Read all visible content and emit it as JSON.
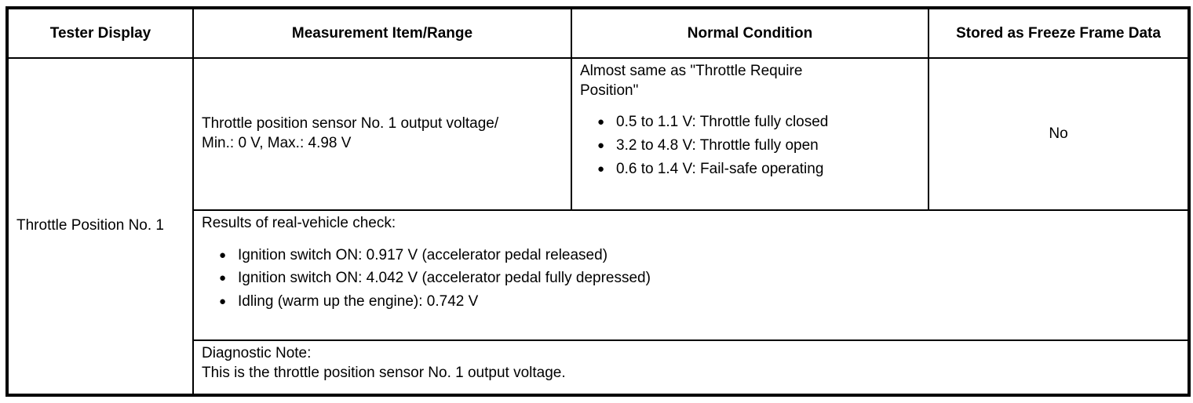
{
  "table": {
    "headers": [
      "Tester Display",
      "Measurement Item/Range",
      "Normal Condition",
      "Stored as Freeze Frame Data"
    ],
    "row": {
      "tester_display": "Throttle Position No. 1",
      "measurement": {
        "line1": "Throttle position sensor No. 1 output voltage/",
        "line2": "Min.: 0 V, Max.: 4.98 V"
      },
      "normal_condition": {
        "intro": "Almost same as \"Throttle Require Position\"",
        "bullets": [
          "0.5 to 1.1 V: Throttle fully closed",
          "3.2 to 4.8 V: Throttle fully open",
          "0.6 to 1.4 V: Fail-safe operating"
        ]
      },
      "freeze_frame": "No",
      "real_vehicle_check": {
        "title": "Results of real-vehicle check:",
        "bullets": [
          "Ignition switch ON: 0.917 V (accelerator pedal released)",
          "Ignition switch ON: 4.042 V (accelerator pedal fully depressed)",
          "Idling (warm up the engine): 0.742 V"
        ]
      },
      "diagnostic_note": {
        "title": "Diagnostic Note:",
        "text": "This is the throttle position sensor No. 1 output voltage."
      }
    }
  }
}
